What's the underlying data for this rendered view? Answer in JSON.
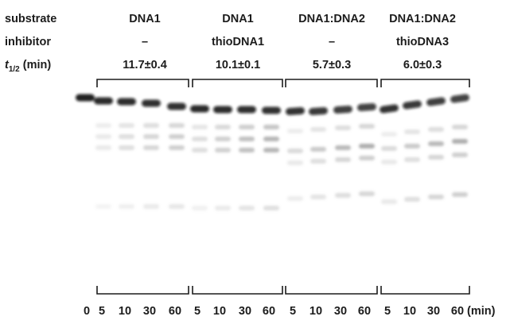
{
  "row_labels": {
    "substrate": "substrate",
    "inhibitor": "inhibitor",
    "t_half_symbol": "t",
    "t_half_subscript": "1/2",
    "t_half_unit": " (min)"
  },
  "groups": [
    {
      "substrate": "DNA1",
      "inhibitor": "–",
      "t_half": "11.7±0.4",
      "times": [
        "5",
        "10",
        "30",
        "60"
      ]
    },
    {
      "substrate": "DNA1",
      "inhibitor": "thioDNA1",
      "t_half": "10.1±0.1",
      "times": [
        "5",
        "10",
        "30",
        "60"
      ]
    },
    {
      "substrate": "DNA1:DNA2",
      "inhibitor": "–",
      "t_half": "5.7±0.3",
      "times": [
        "5",
        "10",
        "30",
        "60"
      ]
    },
    {
      "substrate": "DNA1:DNA2",
      "inhibitor": "thioDNA3",
      "t_half": "6.0±0.3",
      "times": [
        "5",
        "10",
        "30",
        "60"
      ]
    }
  ],
  "control_lane": "0",
  "time_unit": "(min)",
  "colors": {
    "text": "#1c1c1c",
    "band_dark": "#111111",
    "band_light": "#9a9a9a",
    "background": "#ffffff"
  }
}
